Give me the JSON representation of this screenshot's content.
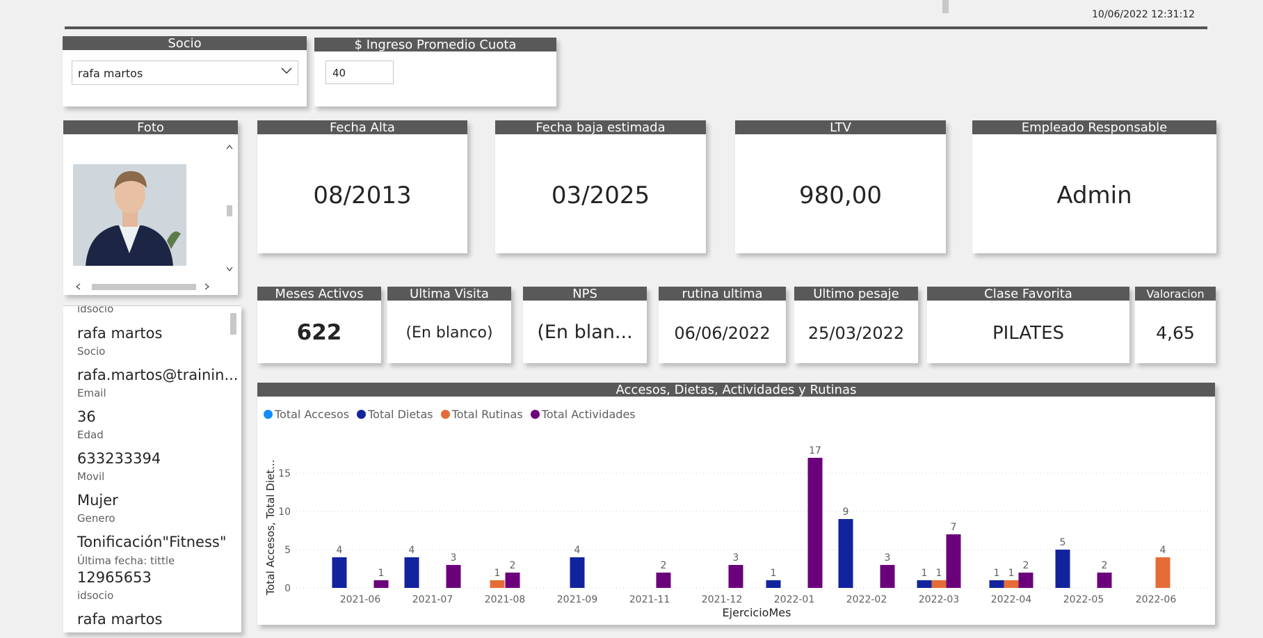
{
  "timestamp": "10/06/2022 12:31:12",
  "socio": {
    "header": "Socio",
    "selected": "rafa martos"
  },
  "ingreso": {
    "header": "$ Ingreso Promedio Cuota",
    "value": "40"
  },
  "foto": {
    "header": "Foto"
  },
  "kpis_top": [
    {
      "header": "Fecha Alta",
      "value": "08/2013"
    },
    {
      "header": "Fecha baja estimada",
      "value": "03/2025"
    },
    {
      "header": "LTV",
      "value": "980,00"
    },
    {
      "header": "Empleado Responsable",
      "value": "Admin"
    }
  ],
  "kpis_mid": [
    {
      "header": "Meses Activos",
      "value": "622"
    },
    {
      "header": "Ultima Visita",
      "value": "(En blanco)"
    },
    {
      "header": "NPS",
      "value": "(En blan..."
    },
    {
      "header": "rutina ultima",
      "value": "06/06/2022"
    },
    {
      "header": "Ultimo pesaje",
      "value": "25/03/2022"
    },
    {
      "header": "Clase Favorita",
      "value": "PILATES"
    },
    {
      "header": "Valoracion",
      "value": "4,65"
    }
  ],
  "details": {
    "top_cut_label": "idsocio",
    "rows": [
      {
        "value": "rafa martos",
        "label": "Socio"
      },
      {
        "value": "rafa.martos@trainin...",
        "label": "Email"
      },
      {
        "value": "36",
        "label": "Edad"
      },
      {
        "value": "633233394",
        "label": "Movil"
      },
      {
        "value": "Mujer",
        "label": "Genero"
      },
      {
        "value": "Tonificación\"Fitness\"",
        "label": "Última fecha: tittle"
      },
      {
        "value": "12965653",
        "label": "idsocio"
      },
      {
        "value": "rafa martos",
        "label": ""
      }
    ]
  },
  "colors": {
    "header_bg": "#595959",
    "total_accesos": "#118DFF",
    "total_dietas": "#12239E",
    "total_rutinas": "#E66C37",
    "total_actividades": "#6B007B"
  },
  "chart_data": {
    "type": "bar",
    "title": "Accesos, Dietas, Actividades y Rutinas",
    "xlabel": "EjercicioMes",
    "ylabel": "Total Accesos, Total Diet...",
    "ylim": [
      0,
      19
    ],
    "yticks": [
      0,
      5,
      10,
      15
    ],
    "grid": true,
    "legend_position": "top-left",
    "categories": [
      "2021-06",
      "2021-07",
      "2021-08",
      "2021-09",
      "2021-11",
      "2021-12",
      "2022-01",
      "2022-02",
      "2022-03",
      "2022-04",
      "2022-05",
      "2022-06"
    ],
    "series": [
      {
        "name": "Total Accesos",
        "values": [
          null,
          null,
          null,
          null,
          null,
          null,
          null,
          null,
          null,
          null,
          null,
          null
        ]
      },
      {
        "name": "Total Dietas",
        "values": [
          4,
          4,
          null,
          4,
          null,
          null,
          1,
          9,
          1,
          1,
          5,
          null
        ]
      },
      {
        "name": "Total Rutinas",
        "values": [
          null,
          null,
          1,
          null,
          null,
          null,
          null,
          null,
          1,
          1,
          null,
          4
        ]
      },
      {
        "name": "Total Actividades",
        "values": [
          1,
          3,
          2,
          null,
          2,
          3,
          17,
          3,
          7,
          2,
          2,
          null
        ]
      }
    ]
  }
}
